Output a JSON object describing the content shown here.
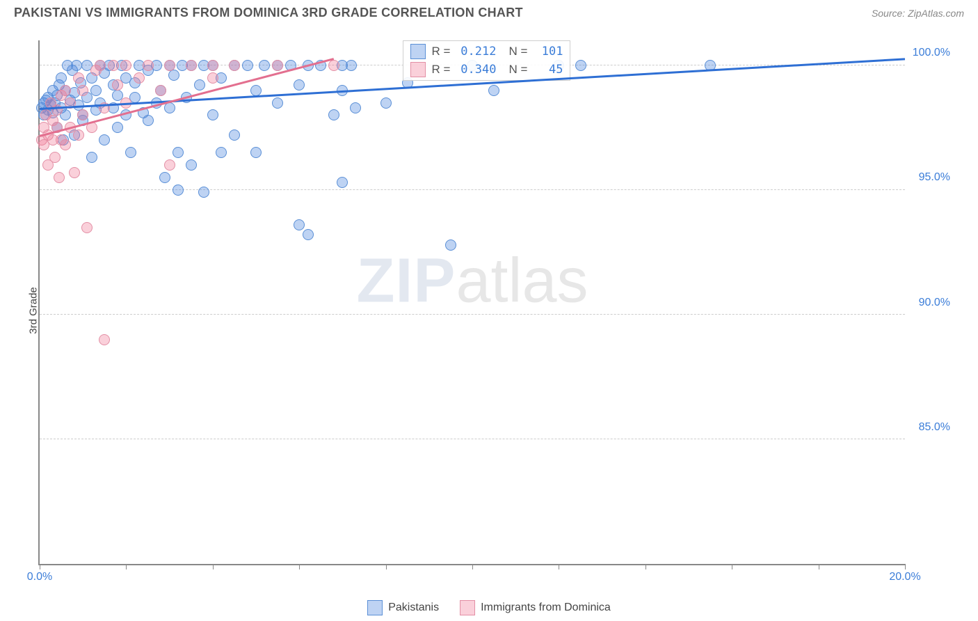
{
  "header": {
    "title": "PAKISTANI VS IMMIGRANTS FROM DOMINICA 3RD GRADE CORRELATION CHART",
    "source": "Source: ZipAtlas.com"
  },
  "chart": {
    "type": "scatter",
    "y_axis_label": "3rd Grade",
    "background_color": "#ffffff",
    "grid_color": "#cccccc",
    "axis_color": "#888888",
    "tick_label_color": "#3b7dd8",
    "x_range": [
      0,
      20
    ],
    "y_range": [
      80,
      101
    ],
    "y_ticks": [
      85,
      90,
      95,
      100
    ],
    "y_tick_labels": [
      "85.0%",
      "90.0%",
      "95.0%",
      "100.0%"
    ],
    "x_ticks": [
      0,
      2,
      4,
      6,
      8,
      10,
      12,
      14,
      16,
      18,
      20
    ],
    "x_tick_labels_shown": {
      "0": "0.0%",
      "20": "20.0%"
    },
    "marker_size": 16,
    "marker_opacity": 0.45,
    "watermark": {
      "part1": "ZIP",
      "part2": "atlas"
    },
    "series": [
      {
        "name": "Pakistanis",
        "color_fill": "rgba(70,130,220,0.35)",
        "color_stroke": "#5a8fd6",
        "trend_color": "#2e6fd4",
        "trend": {
          "x1": 0,
          "y1": 98.3,
          "x2": 20,
          "y2": 100.3
        },
        "R": "0.212",
        "N": "101",
        "points": [
          [
            0.05,
            98.3
          ],
          [
            0.1,
            98.5
          ],
          [
            0.1,
            98.0
          ],
          [
            0.15,
            98.6
          ],
          [
            0.2,
            98.7
          ],
          [
            0.2,
            98.2
          ],
          [
            0.25,
            98.4
          ],
          [
            0.3,
            99.0
          ],
          [
            0.3,
            98.1
          ],
          [
            0.35,
            98.5
          ],
          [
            0.4,
            97.5
          ],
          [
            0.4,
            98.8
          ],
          [
            0.45,
            99.2
          ],
          [
            0.5,
            98.3
          ],
          [
            0.5,
            99.5
          ],
          [
            0.55,
            97.0
          ],
          [
            0.6,
            98.0
          ],
          [
            0.6,
            99.0
          ],
          [
            0.65,
            100.0
          ],
          [
            0.7,
            98.6
          ],
          [
            0.75,
            99.8
          ],
          [
            0.8,
            97.2
          ],
          [
            0.8,
            98.9
          ],
          [
            0.85,
            100.0
          ],
          [
            0.9,
            98.4
          ],
          [
            0.95,
            99.3
          ],
          [
            1.0,
            98.0
          ],
          [
            1.0,
            97.8
          ],
          [
            1.1,
            100.0
          ],
          [
            1.1,
            98.7
          ],
          [
            1.2,
            99.5
          ],
          [
            1.2,
            96.3
          ],
          [
            1.3,
            98.2
          ],
          [
            1.3,
            99.0
          ],
          [
            1.4,
            100.0
          ],
          [
            1.4,
            98.5
          ],
          [
            1.5,
            97.0
          ],
          [
            1.5,
            99.7
          ],
          [
            1.6,
            100.0
          ],
          [
            1.7,
            98.3
          ],
          [
            1.7,
            99.2
          ],
          [
            1.8,
            98.8
          ],
          [
            1.8,
            97.5
          ],
          [
            1.9,
            100.0
          ],
          [
            2.0,
            98.0
          ],
          [
            2.0,
            99.5
          ],
          [
            2.1,
            96.5
          ],
          [
            2.2,
            98.7
          ],
          [
            2.2,
            99.3
          ],
          [
            2.3,
            100.0
          ],
          [
            2.4,
            98.1
          ],
          [
            2.5,
            99.8
          ],
          [
            2.5,
            97.8
          ],
          [
            2.7,
            100.0
          ],
          [
            2.7,
            98.5
          ],
          [
            2.8,
            99.0
          ],
          [
            2.9,
            95.5
          ],
          [
            3.0,
            100.0
          ],
          [
            3.0,
            98.3
          ],
          [
            3.1,
            99.6
          ],
          [
            3.2,
            96.5
          ],
          [
            3.3,
            100.0
          ],
          [
            3.4,
            98.7
          ],
          [
            3.5,
            96.0
          ],
          [
            3.5,
            100.0
          ],
          [
            3.7,
            99.2
          ],
          [
            3.8,
            94.9
          ],
          [
            3.8,
            100.0
          ],
          [
            4.0,
            98.0
          ],
          [
            4.0,
            100.0
          ],
          [
            4.2,
            96.5
          ],
          [
            4.2,
            99.5
          ],
          [
            4.5,
            100.0
          ],
          [
            4.5,
            97.2
          ],
          [
            4.8,
            100.0
          ],
          [
            5.0,
            96.5
          ],
          [
            5.0,
            99.0
          ],
          [
            5.2,
            100.0
          ],
          [
            5.5,
            98.5
          ],
          [
            5.5,
            100.0
          ],
          [
            5.8,
            100.0
          ],
          [
            6.0,
            99.2
          ],
          [
            6.0,
            93.6
          ],
          [
            6.2,
            100.0
          ],
          [
            6.2,
            93.2
          ],
          [
            6.5,
            100.0
          ],
          [
            6.8,
            98.0
          ],
          [
            7.0,
            95.3
          ],
          [
            7.0,
            100.0
          ],
          [
            7.0,
            99.0
          ],
          [
            7.2,
            100.0
          ],
          [
            7.3,
            98.3
          ],
          [
            8.0,
            98.5
          ],
          [
            8.5,
            99.3
          ],
          [
            9.5,
            92.8
          ],
          [
            10.0,
            100.0
          ],
          [
            10.5,
            99.0
          ],
          [
            12.0,
            100.0
          ],
          [
            12.5,
            100.0
          ],
          [
            15.5,
            100.0
          ],
          [
            3.2,
            95.0
          ]
        ]
      },
      {
        "name": "Immigrants from Dominica",
        "color_fill": "rgba(240,120,150,0.35)",
        "color_stroke": "#e38fa5",
        "trend_color": "#e36f8f",
        "trend": {
          "x1": 0,
          "y1": 97.2,
          "x2": 6.8,
          "y2": 100.3
        },
        "R": "0.340",
        "N": "45",
        "points": [
          [
            0.05,
            97.0
          ],
          [
            0.1,
            97.5
          ],
          [
            0.1,
            96.8
          ],
          [
            0.15,
            98.0
          ],
          [
            0.2,
            97.2
          ],
          [
            0.2,
            96.0
          ],
          [
            0.25,
            98.5
          ],
          [
            0.3,
            97.0
          ],
          [
            0.3,
            97.8
          ],
          [
            0.35,
            96.3
          ],
          [
            0.4,
            98.2
          ],
          [
            0.4,
            97.5
          ],
          [
            0.45,
            95.5
          ],
          [
            0.5,
            98.8
          ],
          [
            0.5,
            97.0
          ],
          [
            0.6,
            99.0
          ],
          [
            0.6,
            96.8
          ],
          [
            0.7,
            97.5
          ],
          [
            0.7,
            98.5
          ],
          [
            0.8,
            95.7
          ],
          [
            0.9,
            99.5
          ],
          [
            0.9,
            97.2
          ],
          [
            1.0,
            98.0
          ],
          [
            1.0,
            99.0
          ],
          [
            1.1,
            93.5
          ],
          [
            1.2,
            97.5
          ],
          [
            1.3,
            99.8
          ],
          [
            1.4,
            100.0
          ],
          [
            1.5,
            98.3
          ],
          [
            1.5,
            89.0
          ],
          [
            1.7,
            100.0
          ],
          [
            1.8,
            99.2
          ],
          [
            2.0,
            98.5
          ],
          [
            2.0,
            100.0
          ],
          [
            2.3,
            99.5
          ],
          [
            2.5,
            100.0
          ],
          [
            2.8,
            99.0
          ],
          [
            3.0,
            96.0
          ],
          [
            3.0,
            100.0
          ],
          [
            3.5,
            100.0
          ],
          [
            4.0,
            99.5
          ],
          [
            4.0,
            100.0
          ],
          [
            4.5,
            100.0
          ],
          [
            5.5,
            100.0
          ],
          [
            6.8,
            100.0
          ]
        ]
      }
    ],
    "stats_box": {
      "left_pct": 42,
      "top_pct": 0
    },
    "legend_bottom": [
      "Pakistanis",
      "Immigrants from Dominica"
    ]
  }
}
